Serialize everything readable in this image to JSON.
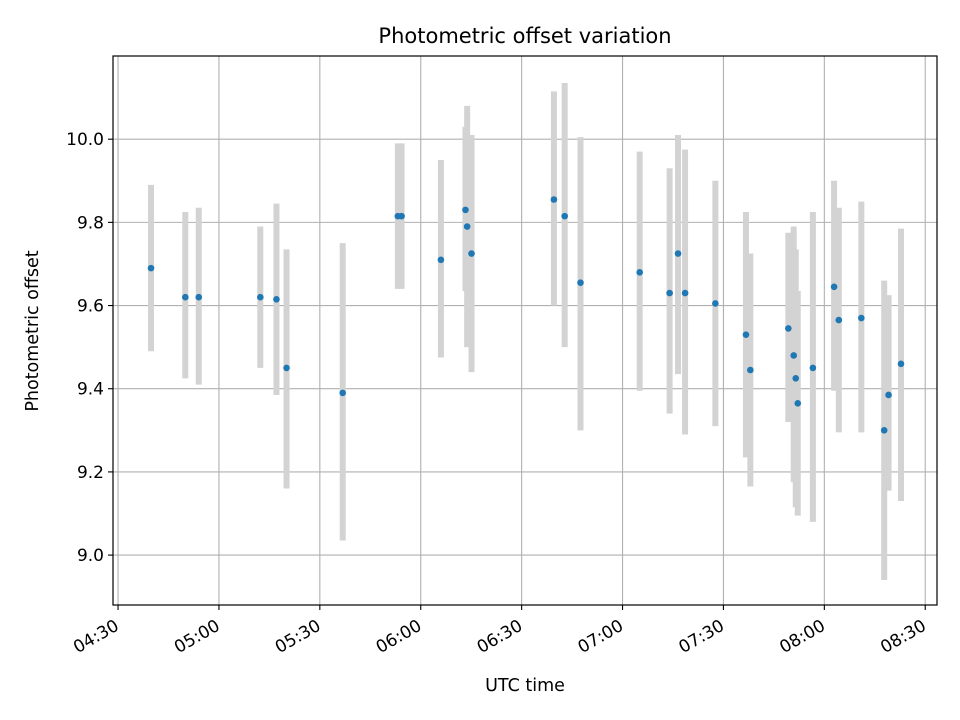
{
  "chart_data": {
    "type": "scatter",
    "title": "Photometric offset variation",
    "xlabel": "UTC time",
    "ylabel": "Photometric offset",
    "grid": true,
    "legend": "none",
    "x_unit": "minutes since 00:00 UTC",
    "xlim": [
      268.5,
      513.5
    ],
    "ylim": [
      8.88,
      10.2
    ],
    "x_ticks": [
      270,
      300,
      330,
      360,
      390,
      420,
      450,
      480,
      510
    ],
    "x_tick_labels": [
      "04:30",
      "05:00",
      "05:30",
      "06:00",
      "06:30",
      "07:00",
      "07:30",
      "08:00",
      "08:30"
    ],
    "y_ticks": [
      9.0,
      9.2,
      9.4,
      9.6,
      9.8,
      10.0
    ],
    "y_tick_labels": [
      "9.0",
      "9.2",
      "9.4",
      "9.6",
      "9.8",
      "10.0"
    ],
    "colors": {
      "marker": "#1f77b4",
      "errorbar": "#d3d3d3",
      "grid": "#b0b0b0",
      "axes": "#000000"
    },
    "series": [
      {
        "name": "offset",
        "points": [
          {
            "x": 279.8,
            "y": 9.69,
            "lo": 9.49,
            "hi": 9.89
          },
          {
            "x": 290.0,
            "y": 9.62,
            "lo": 9.425,
            "hi": 9.825
          },
          {
            "x": 294.0,
            "y": 9.62,
            "lo": 9.41,
            "hi": 9.835
          },
          {
            "x": 312.3,
            "y": 9.62,
            "lo": 9.45,
            "hi": 9.79
          },
          {
            "x": 317.1,
            "y": 9.615,
            "lo": 9.385,
            "hi": 9.845
          },
          {
            "x": 320.1,
            "y": 9.45,
            "lo": 9.16,
            "hi": 9.735
          },
          {
            "x": 336.8,
            "y": 9.39,
            "lo": 9.035,
            "hi": 9.75
          },
          {
            "x": 353.2,
            "y": 9.815,
            "lo": 9.64,
            "hi": 9.99
          },
          {
            "x": 354.3,
            "y": 9.815,
            "lo": 9.64,
            "hi": 9.99
          },
          {
            "x": 366.0,
            "y": 9.71,
            "lo": 9.475,
            "hi": 9.95
          },
          {
            "x": 373.3,
            "y": 9.83,
            "lo": 9.635,
            "hi": 10.03
          },
          {
            "x": 373.8,
            "y": 9.79,
            "lo": 9.5,
            "hi": 10.08
          },
          {
            "x": 375.1,
            "y": 9.725,
            "lo": 9.44,
            "hi": 10.01
          },
          {
            "x": 399.6,
            "y": 9.855,
            "lo": 9.6,
            "hi": 10.115
          },
          {
            "x": 402.8,
            "y": 9.815,
            "lo": 9.5,
            "hi": 10.135
          },
          {
            "x": 407.5,
            "y": 9.655,
            "lo": 9.3,
            "hi": 10.005
          },
          {
            "x": 425.1,
            "y": 9.68,
            "lo": 9.395,
            "hi": 9.97
          },
          {
            "x": 434.0,
            "y": 9.63,
            "lo": 9.34,
            "hi": 9.93
          },
          {
            "x": 436.5,
            "y": 9.725,
            "lo": 9.435,
            "hi": 10.01
          },
          {
            "x": 438.6,
            "y": 9.63,
            "lo": 9.29,
            "hi": 9.975
          },
          {
            "x": 447.6,
            "y": 9.605,
            "lo": 9.31,
            "hi": 9.9
          },
          {
            "x": 456.7,
            "y": 9.53,
            "lo": 9.235,
            "hi": 9.825
          },
          {
            "x": 458.0,
            "y": 9.445,
            "lo": 9.165,
            "hi": 9.725
          },
          {
            "x": 469.3,
            "y": 9.545,
            "lo": 9.32,
            "hi": 9.775
          },
          {
            "x": 470.9,
            "y": 9.48,
            "lo": 9.175,
            "hi": 9.79
          },
          {
            "x": 471.5,
            "y": 9.425,
            "lo": 9.115,
            "hi": 9.735
          },
          {
            "x": 472.1,
            "y": 9.365,
            "lo": 9.095,
            "hi": 9.635
          },
          {
            "x": 476.6,
            "y": 9.45,
            "lo": 9.08,
            "hi": 9.825
          },
          {
            "x": 482.9,
            "y": 9.645,
            "lo": 9.395,
            "hi": 9.9
          },
          {
            "x": 484.3,
            "y": 9.565,
            "lo": 9.295,
            "hi": 9.835
          },
          {
            "x": 491.0,
            "y": 9.57,
            "lo": 9.295,
            "hi": 9.85
          },
          {
            "x": 497.8,
            "y": 9.3,
            "lo": 8.94,
            "hi": 9.66
          },
          {
            "x": 499.1,
            "y": 9.385,
            "lo": 9.155,
            "hi": 9.625
          },
          {
            "x": 502.8,
            "y": 9.46,
            "lo": 9.13,
            "hi": 9.785
          }
        ]
      }
    ]
  }
}
